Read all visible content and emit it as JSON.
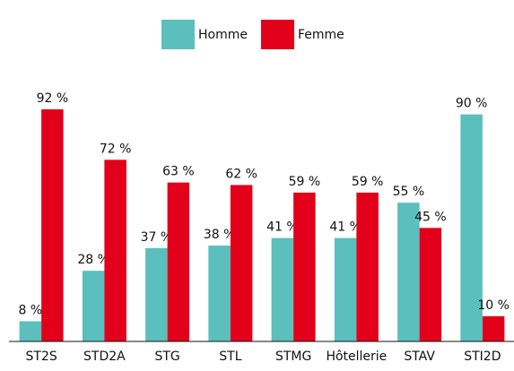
{
  "chart_data": {
    "type": "bar",
    "categories": [
      "ST2S",
      "STD2A",
      "STG",
      "STL",
      "STMG",
      "Hôtellerie",
      "STAV",
      "STI2D"
    ],
    "series": [
      {
        "name": "Homme",
        "color": "#5bbfbe",
        "values": [
          8,
          28,
          37,
          38,
          41,
          41,
          55,
          90
        ],
        "value_labels": [
          "8 %",
          "28 %",
          "37 %",
          "38 %",
          "41 %",
          "41 %",
          "55 %",
          "90 %"
        ]
      },
      {
        "name": "Femme",
        "color": "#e2001a",
        "values": [
          92,
          72,
          63,
          62,
          59,
          59,
          45,
          10
        ],
        "value_labels": [
          "92 %",
          "72 %",
          "63 %",
          "62 %",
          "59 %",
          "59 %",
          "45 %",
          "10 %"
        ]
      }
    ],
    "ylim": [
      0,
      100
    ]
  }
}
